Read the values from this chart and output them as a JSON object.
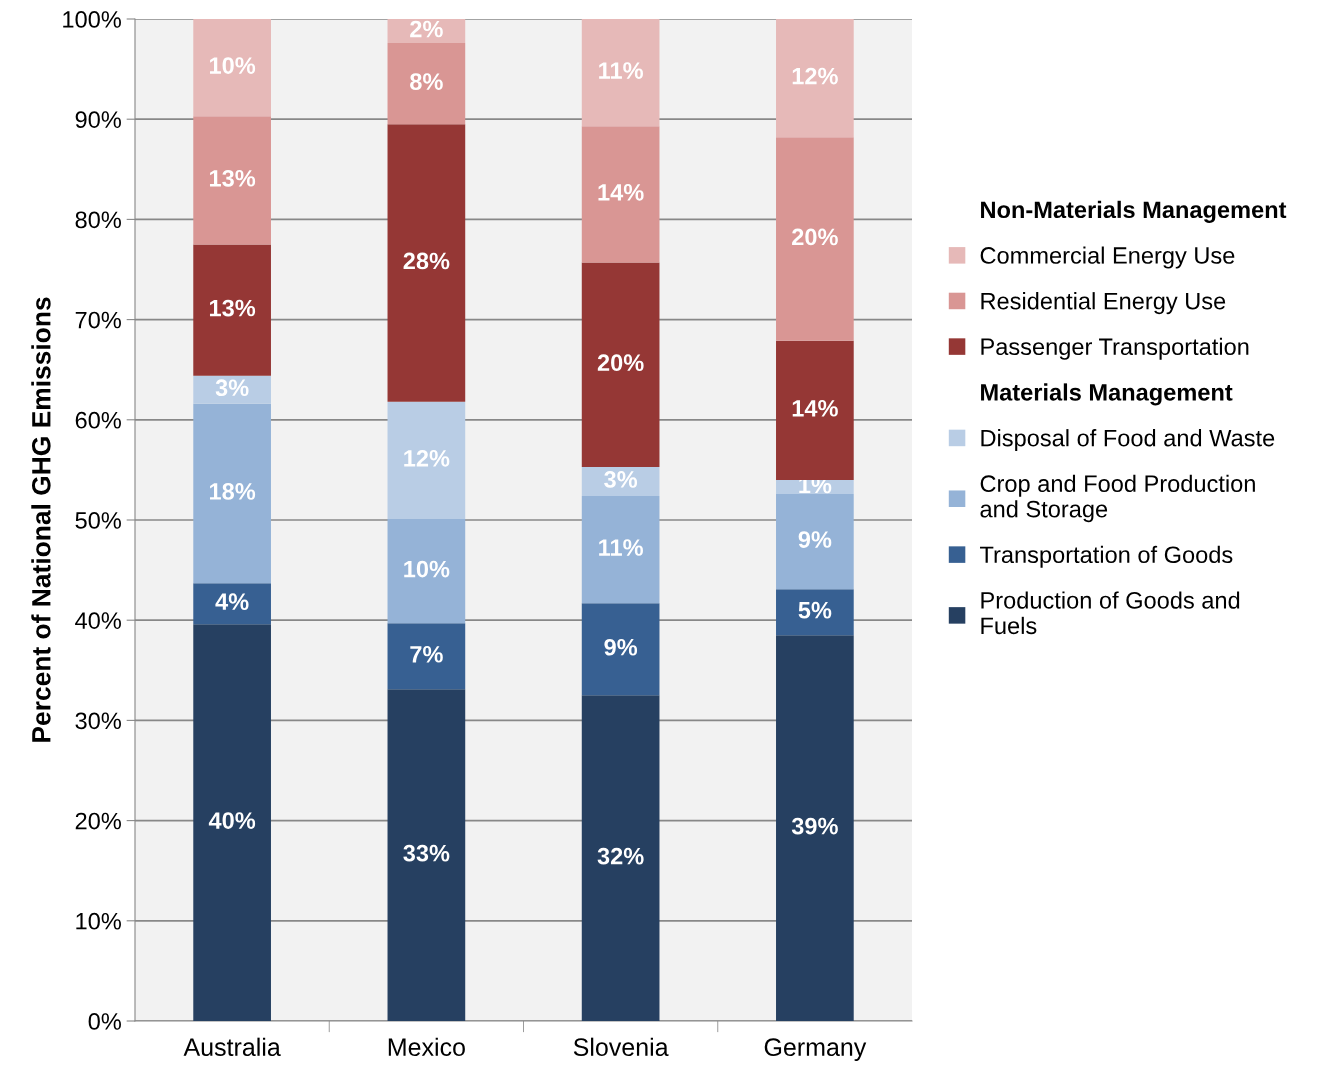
{
  "chart_data": {
    "type": "bar",
    "stacked": true,
    "ylabel": "Percent of National GHG Emissions",
    "categories": [
      "Australia",
      "Mexico",
      "Slovenia",
      "Germany"
    ],
    "series": [
      {
        "name": "Production of Goods and\nFuels",
        "color": "#264061",
        "values": [
          39.6,
          33.1,
          32.5,
          38.5
        ],
        "value_labels": [
          "40%",
          "33%",
          "32%",
          "39%"
        ]
      },
      {
        "name": "Transportation of Goods",
        "color": "#376092",
        "values": [
          4.1,
          6.6,
          9.2,
          4.6
        ],
        "value_labels": [
          "4%",
          "7%",
          "9%",
          "5%"
        ]
      },
      {
        "name": "Crop and Food Production\nand Storage",
        "color": "#95b3d7",
        "values": [
          17.9,
          10.4,
          10.7,
          9.5
        ],
        "value_labels": [
          "18%",
          "10%",
          "11%",
          "9%"
        ]
      },
      {
        "name": "Disposal of Food and Waste",
        "color": "#b9cde5",
        "values": [
          2.8,
          11.7,
          2.9,
          1.4
        ],
        "value_labels": [
          "3%",
          "12%",
          "3%",
          "1%"
        ]
      },
      {
        "name": "Passenger Transportation",
        "color": "#953735",
        "values": [
          13.1,
          27.7,
          20.4,
          13.9
        ],
        "value_labels": [
          "13%",
          "28%",
          "20%",
          "14%"
        ]
      },
      {
        "name": "Residential Energy Use",
        "color": "#d99694",
        "values": [
          12.8,
          8.1,
          13.6,
          20.3
        ],
        "value_labels": [
          "13%",
          "8%",
          "14%",
          "20%"
        ]
      },
      {
        "name": "Commercial Energy Use",
        "color": "#e6b9b8",
        "values": [
          9.7,
          2.4,
          10.7,
          11.8
        ],
        "value_labels": [
          "10%",
          "2%",
          "11%",
          "12%"
        ]
      }
    ],
    "annotations": [
      "Non-Materials Management",
      "Materials Management"
    ],
    "ylim": [
      0,
      100
    ],
    "yticks": [
      {
        "value": 0,
        "label": "0%"
      },
      {
        "value": 10,
        "label": "10%"
      },
      {
        "value": 20,
        "label": "20%"
      },
      {
        "value": 30,
        "label": "30%"
      },
      {
        "value": 40,
        "label": "40%"
      },
      {
        "value": 50,
        "label": "50%"
      },
      {
        "value": 60,
        "label": "60%"
      },
      {
        "value": 70,
        "label": "70%"
      },
      {
        "value": 80,
        "label": "80%"
      },
      {
        "value": 90,
        "label": "90%"
      },
      {
        "value": 100,
        "label": "100%"
      }
    ],
    "grid": "y",
    "legend": "right"
  }
}
